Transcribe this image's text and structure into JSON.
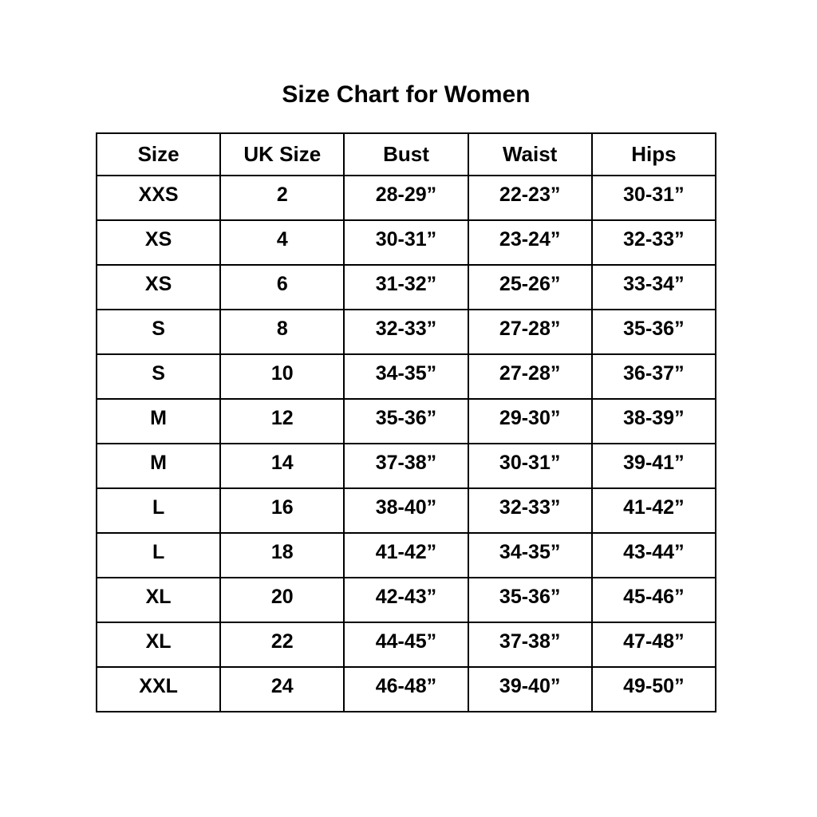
{
  "page": {
    "background_color": "#ffffff",
    "text_color": "#000000",
    "border_color": "#000000"
  },
  "title": "Size Chart for Women",
  "chart_data": {
    "type": "table",
    "title": "Size Chart for Women",
    "columns": [
      "Size",
      "UK Size",
      "Bust",
      "Waist",
      "Hips"
    ],
    "rows": [
      [
        "XXS",
        "2",
        "28-29”",
        "22-23”",
        "30-31”"
      ],
      [
        "XS",
        "4",
        "30-31”",
        "23-24”",
        "32-33”"
      ],
      [
        "XS",
        "6",
        "31-32”",
        "25-26”",
        "33-34”"
      ],
      [
        "S",
        "8",
        "32-33”",
        "27-28”",
        "35-36”"
      ],
      [
        "S",
        "10",
        "34-35”",
        "27-28”",
        "36-37”"
      ],
      [
        "M",
        "12",
        "35-36”",
        "29-30”",
        "38-39”"
      ],
      [
        "M",
        "14",
        "37-38”",
        "30-31”",
        "39-41”"
      ],
      [
        "L",
        "16",
        "38-40”",
        "32-33”",
        "41-42”"
      ],
      [
        "L",
        "18",
        "41-42”",
        "34-35”",
        "43-44”"
      ],
      [
        "XL",
        "20",
        "42-43”",
        "35-36”",
        "45-46”"
      ],
      [
        "XL",
        "22",
        "44-45”",
        "37-38”",
        "47-48”"
      ],
      [
        "XXL",
        "24",
        "46-48”",
        "39-40”",
        "49-50”"
      ]
    ],
    "layout": {
      "grid": true,
      "header_row": true,
      "units": "inches"
    }
  }
}
